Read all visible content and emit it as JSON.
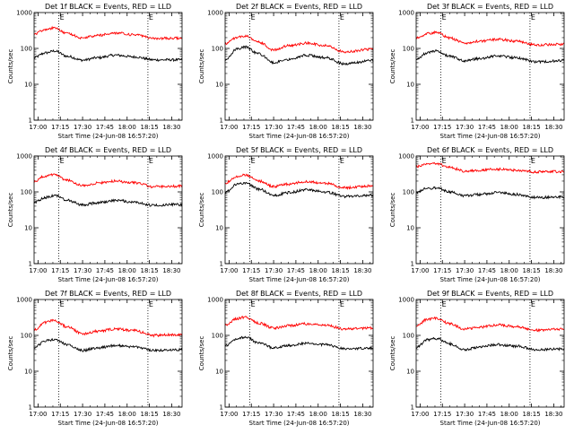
{
  "figure": {
    "x_axis_title": "Start Time (24-Jun-08 16:57:20)",
    "y_axis_title": "Counts/sec",
    "flare_marker_label": "E"
  },
  "colors": {
    "events": "#000000",
    "lld": "#ff0000",
    "background": "#ffffff"
  },
  "chart_data": [
    {
      "type": "line",
      "title": "Det 1f BLACK = Events, RED = LLD",
      "x_labels": [
        "17:00",
        "17:15",
        "17:30",
        "17:45",
        "18:00",
        "18:15",
        "18:30"
      ],
      "x_range": [
        "16:57:20",
        "18:37:00"
      ],
      "y_scale": "log",
      "y_range": [
        1,
        1000
      ],
      "y_tick_labels": [
        "1",
        "10",
        "100",
        "1000"
      ],
      "markers": [
        "17:14",
        "18:14"
      ],
      "series": [
        {
          "name": "Events",
          "color": "#000000",
          "points": [
            [
              "16:57",
              55
            ],
            [
              "17:05",
              75
            ],
            [
              "17:11",
              85
            ],
            [
              "17:20",
              60
            ],
            [
              "17:30",
              47
            ],
            [
              "17:40",
              55
            ],
            [
              "17:52",
              65
            ],
            [
              "18:05",
              58
            ],
            [
              "18:18",
              48
            ],
            [
              "18:35",
              48
            ]
          ]
        },
        {
          "name": "LLD",
          "color": "#ff0000",
          "points": [
            [
              "16:57",
              250
            ],
            [
              "17:05",
              340
            ],
            [
              "17:11",
              380
            ],
            [
              "17:20",
              260
            ],
            [
              "17:30",
              195
            ],
            [
              "17:40",
              230
            ],
            [
              "17:52",
              270
            ],
            [
              "18:05",
              240
            ],
            [
              "18:18",
              190
            ],
            [
              "18:35",
              195
            ]
          ]
        }
      ]
    },
    {
      "type": "line",
      "title": "Det 2f BLACK = Events, RED = LLD",
      "x_labels": [
        "17:00",
        "17:15",
        "17:30",
        "17:45",
        "18:00",
        "18:15",
        "18:30"
      ],
      "x_range": [
        "16:57:20",
        "18:37:00"
      ],
      "y_scale": "log",
      "y_range": [
        1,
        1000
      ],
      "y_tick_labels": [
        "1",
        "10",
        "100",
        "1000"
      ],
      "markers": [
        "17:14",
        "18:14"
      ],
      "series": [
        {
          "name": "Events",
          "color": "#000000",
          "points": [
            [
              "16:57",
              45
            ],
            [
              "17:05",
              95
            ],
            [
              "17:11",
              110
            ],
            [
              "17:20",
              70
            ],
            [
              "17:30",
              40
            ],
            [
              "17:40",
              50
            ],
            [
              "17:52",
              65
            ],
            [
              "18:05",
              55
            ],
            [
              "18:18",
              37
            ],
            [
              "18:35",
              45
            ]
          ]
        },
        {
          "name": "LLD",
          "color": "#ff0000",
          "points": [
            [
              "16:57",
              130
            ],
            [
              "17:05",
              200
            ],
            [
              "17:11",
              220
            ],
            [
              "17:20",
              150
            ],
            [
              "17:30",
              90
            ],
            [
              "17:40",
              120
            ],
            [
              "17:52",
              140
            ],
            [
              "18:05",
              120
            ],
            [
              "18:18",
              80
            ],
            [
              "18:35",
              95
            ]
          ]
        }
      ]
    },
    {
      "type": "line",
      "title": "Det 3f BLACK = Events, RED = LLD",
      "x_labels": [
        "17:00",
        "17:15",
        "17:30",
        "17:45",
        "18:00",
        "18:15",
        "18:30"
      ],
      "x_range": [
        "16:57:20",
        "18:37:00"
      ],
      "y_scale": "log",
      "y_range": [
        1,
        1000
      ],
      "y_tick_labels": [
        "1",
        "10",
        "100",
        "1000"
      ],
      "markers": [
        "17:14",
        "18:14"
      ],
      "series": [
        {
          "name": "Events",
          "color": "#000000",
          "points": [
            [
              "16:57",
              50
            ],
            [
              "17:05",
              75
            ],
            [
              "17:11",
              85
            ],
            [
              "17:20",
              60
            ],
            [
              "17:30",
              45
            ],
            [
              "17:40",
              52
            ],
            [
              "17:52",
              62
            ],
            [
              "18:05",
              55
            ],
            [
              "18:18",
              42
            ],
            [
              "18:35",
              45
            ]
          ]
        },
        {
          "name": "LLD",
          "color": "#ff0000",
          "points": [
            [
              "16:57",
              190
            ],
            [
              "17:05",
              260
            ],
            [
              "17:11",
              280
            ],
            [
              "17:20",
              195
            ],
            [
              "17:30",
              140
            ],
            [
              "17:40",
              160
            ],
            [
              "17:52",
              180
            ],
            [
              "18:05",
              160
            ],
            [
              "18:18",
              125
            ],
            [
              "18:35",
              130
            ]
          ]
        }
      ]
    },
    {
      "type": "line",
      "title": "Det 4f BLACK = Events, RED = LLD",
      "x_labels": [
        "17:00",
        "17:15",
        "17:30",
        "17:45",
        "18:00",
        "18:15",
        "18:30"
      ],
      "x_range": [
        "16:57:20",
        "18:37:00"
      ],
      "y_scale": "log",
      "y_range": [
        1,
        1000
      ],
      "y_tick_labels": [
        "1",
        "10",
        "100",
        "1000"
      ],
      "markers": [
        "17:14",
        "18:14"
      ],
      "series": [
        {
          "name": "Events",
          "color": "#000000",
          "points": [
            [
              "16:57",
              50
            ],
            [
              "17:05",
              70
            ],
            [
              "17:11",
              80
            ],
            [
              "17:20",
              58
            ],
            [
              "17:30",
              43
            ],
            [
              "17:40",
              50
            ],
            [
              "17:52",
              58
            ],
            [
              "18:05",
              52
            ],
            [
              "18:18",
              42
            ],
            [
              "18:35",
              45
            ]
          ]
        },
        {
          "name": "LLD",
          "color": "#ff0000",
          "points": [
            [
              "16:57",
              190
            ],
            [
              "17:05",
              280
            ],
            [
              "17:11",
              300
            ],
            [
              "17:20",
              210
            ],
            [
              "17:30",
              150
            ],
            [
              "17:40",
              175
            ],
            [
              "17:52",
              200
            ],
            [
              "18:05",
              180
            ],
            [
              "18:18",
              140
            ],
            [
              "18:35",
              145
            ]
          ]
        }
      ]
    },
    {
      "type": "line",
      "title": "Det 5f BLACK = Events, RED = LLD",
      "x_labels": [
        "17:00",
        "17:15",
        "17:30",
        "17:45",
        "18:00",
        "18:15",
        "18:30"
      ],
      "x_range": [
        "16:57:20",
        "18:37:00"
      ],
      "y_scale": "log",
      "y_range": [
        1,
        1000
      ],
      "y_tick_labels": [
        "1",
        "10",
        "100",
        "1000"
      ],
      "markers": [
        "17:14",
        "18:14"
      ],
      "series": [
        {
          "name": "Events",
          "color": "#000000",
          "points": [
            [
              "16:57",
              95
            ],
            [
              "17:05",
              160
            ],
            [
              "17:11",
              175
            ],
            [
              "17:20",
              120
            ],
            [
              "17:30",
              80
            ],
            [
              "17:40",
              95
            ],
            [
              "17:52",
              115
            ],
            [
              "18:05",
              100
            ],
            [
              "18:18",
              75
            ],
            [
              "18:35",
              80
            ]
          ]
        },
        {
          "name": "LLD",
          "color": "#ff0000",
          "points": [
            [
              "16:57",
              170
            ],
            [
              "17:05",
              270
            ],
            [
              "17:11",
              300
            ],
            [
              "17:20",
              200
            ],
            [
              "17:30",
              140
            ],
            [
              "17:40",
              165
            ],
            [
              "17:52",
              195
            ],
            [
              "18:05",
              175
            ],
            [
              "18:18",
              130
            ],
            [
              "18:35",
              145
            ]
          ]
        }
      ]
    },
    {
      "type": "line",
      "title": "Det 6f BLACK = Events, RED = LLD",
      "x_labels": [
        "17:00",
        "17:15",
        "17:30",
        "17:45",
        "18:00",
        "18:15",
        "18:30"
      ],
      "x_range": [
        "16:57:20",
        "18:37:00"
      ],
      "y_scale": "log",
      "y_range": [
        1,
        1000
      ],
      "y_tick_labels": [
        "1",
        "10",
        "100",
        "1000"
      ],
      "markers": [
        "17:14",
        "18:14"
      ],
      "series": [
        {
          "name": "Events",
          "color": "#000000",
          "points": [
            [
              "16:57",
              95
            ],
            [
              "17:05",
              125
            ],
            [
              "17:11",
              130
            ],
            [
              "17:20",
              100
            ],
            [
              "17:30",
              78
            ],
            [
              "17:40",
              85
            ],
            [
              "17:52",
              95
            ],
            [
              "18:05",
              85
            ],
            [
              "18:18",
              70
            ],
            [
              "18:35",
              72
            ]
          ]
        },
        {
          "name": "LLD",
          "color": "#ff0000",
          "points": [
            [
              "16:57",
              500
            ],
            [
              "17:05",
              600
            ],
            [
              "17:11",
              620
            ],
            [
              "17:20",
              480
            ],
            [
              "17:30",
              380
            ],
            [
              "17:40",
              400
            ],
            [
              "17:52",
              430
            ],
            [
              "18:05",
              400
            ],
            [
              "18:18",
              360
            ],
            [
              "18:35",
              370
            ]
          ]
        }
      ]
    },
    {
      "type": "line",
      "title": "Det 7f BLACK = Events, RED = LLD",
      "x_labels": [
        "17:00",
        "17:15",
        "17:30",
        "17:45",
        "18:00",
        "18:15",
        "18:30"
      ],
      "x_range": [
        "16:57:20",
        "18:37:00"
      ],
      "y_scale": "log",
      "y_range": [
        1,
        1000
      ],
      "y_tick_labels": [
        "1",
        "10",
        "100",
        "1000"
      ],
      "markers": [
        "17:14",
        "18:14"
      ],
      "series": [
        {
          "name": "Events",
          "color": "#000000",
          "points": [
            [
              "16:57",
              45
            ],
            [
              "17:05",
              70
            ],
            [
              "17:11",
              78
            ],
            [
              "17:20",
              55
            ],
            [
              "17:30",
              38
            ],
            [
              "17:40",
              45
            ],
            [
              "17:52",
              52
            ],
            [
              "18:05",
              48
            ],
            [
              "18:18",
              38
            ],
            [
              "18:35",
              40
            ]
          ]
        },
        {
          "name": "LLD",
          "color": "#ff0000",
          "points": [
            [
              "16:57",
              140
            ],
            [
              "17:05",
              230
            ],
            [
              "17:11",
              260
            ],
            [
              "17:20",
              170
            ],
            [
              "17:30",
              110
            ],
            [
              "17:40",
              130
            ],
            [
              "17:52",
              150
            ],
            [
              "18:05",
              135
            ],
            [
              "18:18",
              100
            ],
            [
              "18:35",
              105
            ]
          ]
        }
      ]
    },
    {
      "type": "line",
      "title": "Det 8f BLACK = Events, RED = LLD",
      "x_labels": [
        "17:00",
        "17:15",
        "17:30",
        "17:45",
        "18:00",
        "18:15",
        "18:30"
      ],
      "x_range": [
        "16:57:20",
        "18:37:00"
      ],
      "y_scale": "log",
      "y_range": [
        1,
        1000
      ],
      "y_tick_labels": [
        "1",
        "10",
        "100",
        "1000"
      ],
      "markers": [
        "17:14",
        "18:14"
      ],
      "series": [
        {
          "name": "Events",
          "color": "#000000",
          "points": [
            [
              "16:57",
              50
            ],
            [
              "17:05",
              80
            ],
            [
              "17:11",
              90
            ],
            [
              "17:20",
              62
            ],
            [
              "17:30",
              45
            ],
            [
              "17:40",
              52
            ],
            [
              "17:52",
              60
            ],
            [
              "18:05",
              55
            ],
            [
              "18:18",
              42
            ],
            [
              "18:35",
              45
            ]
          ]
        },
        {
          "name": "LLD",
          "color": "#ff0000",
          "points": [
            [
              "16:57",
              190
            ],
            [
              "17:05",
              290
            ],
            [
              "17:11",
              320
            ],
            [
              "17:20",
              220
            ],
            [
              "17:30",
              160
            ],
            [
              "17:40",
              185
            ],
            [
              "17:52",
              210
            ],
            [
              "18:05",
              190
            ],
            [
              "18:18",
              150
            ],
            [
              "18:35",
              160
            ]
          ]
        }
      ]
    },
    {
      "type": "line",
      "title": "Det 9f BLACK = Events, RED = LLD",
      "x_labels": [
        "17:00",
        "17:15",
        "17:30",
        "17:45",
        "18:00",
        "18:15",
        "18:30"
      ],
      "x_range": [
        "16:57:20",
        "18:37:00"
      ],
      "y_scale": "log",
      "y_range": [
        1,
        1000
      ],
      "y_tick_labels": [
        "1",
        "10",
        "100",
        "1000"
      ],
      "markers": [
        "17:14",
        "18:14"
      ],
      "series": [
        {
          "name": "Events",
          "color": "#000000",
          "points": [
            [
              "16:57",
              45
            ],
            [
              "17:05",
              75
            ],
            [
              "17:11",
              82
            ],
            [
              "17:20",
              58
            ],
            [
              "17:30",
              40
            ],
            [
              "17:40",
              47
            ],
            [
              "17:52",
              55
            ],
            [
              "18:05",
              50
            ],
            [
              "18:18",
              40
            ],
            [
              "18:35",
              42
            ]
          ]
        },
        {
          "name": "LLD",
          "color": "#ff0000",
          "points": [
            [
              "16:57",
              180
            ],
            [
              "17:05",
              280
            ],
            [
              "17:11",
              300
            ],
            [
              "17:20",
              210
            ],
            [
              "17:30",
              150
            ],
            [
              "17:40",
              170
            ],
            [
              "17:52",
              195
            ],
            [
              "18:05",
              175
            ],
            [
              "18:18",
              140
            ],
            [
              "18:35",
              150
            ]
          ]
        }
      ]
    }
  ]
}
